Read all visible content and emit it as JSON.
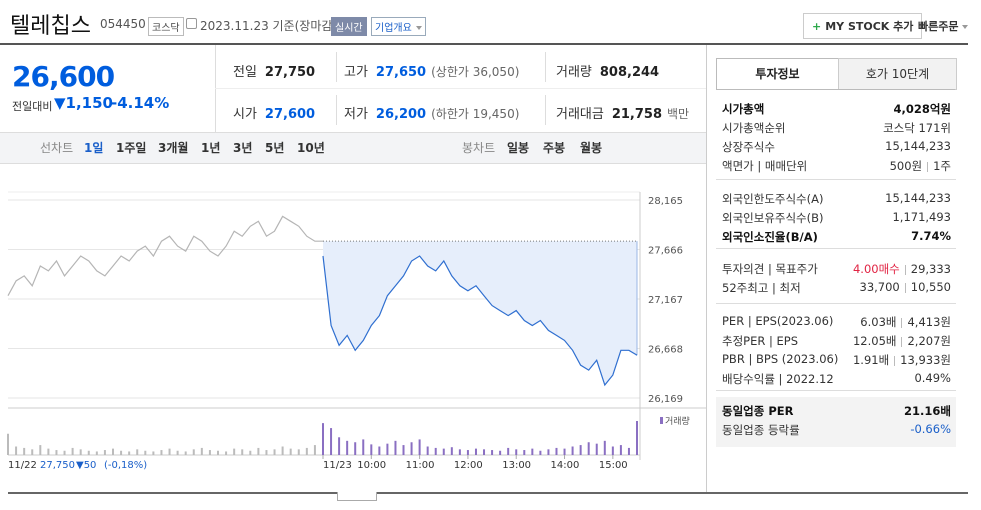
{
  "header": {
    "name": "텔레칩스",
    "code": "054450",
    "market": "코스닥",
    "date": "2023.11.23 기준(장마감)",
    "realtime": "실시간",
    "overview": "기업개요",
    "mystock": "MY STOCK 추가",
    "quick_order": "빠른주문"
  },
  "quote": {
    "price": "26,600",
    "change_label": "전일대비",
    "change": "▼1,150",
    "change_pct": "-4.14%",
    "cells": [
      {
        "label": "전일",
        "value": "27,750"
      },
      {
        "label": "고가",
        "value": "27,650",
        "extra": "(상한가 36,050)"
      },
      {
        "label": "거래량",
        "value": "808,244"
      },
      {
        "label": "시가",
        "value": "27,600"
      },
      {
        "label": "저가",
        "value": "26,200",
        "extra": "(하한가 19,450)"
      },
      {
        "label": "거래대금",
        "value": "21,758",
        "extra": "백만"
      }
    ]
  },
  "tabs": {
    "line_label": "선차트",
    "periods": [
      "1일",
      "1주일",
      "3개월",
      "1년",
      "3년",
      "5년",
      "10년"
    ],
    "candle_label": "봉차트",
    "candles": [
      "일봉",
      "주봉",
      "월봉"
    ]
  },
  "chart_data": {
    "type": "line",
    "ylim": [
      26169,
      28165
    ],
    "yticks": [
      {
        "value": 28165,
        "label": "28,165"
      },
      {
        "value": 27666,
        "label": "27,666"
      },
      {
        "value": 27167,
        "label": "27,167"
      },
      {
        "value": 26668,
        "label": "26,668"
      },
      {
        "value": 26169,
        "label": "26,169"
      }
    ],
    "reference": 27750,
    "x_labels": [
      "11/23",
      "10:00",
      "11:00",
      "12:00",
      "13:00",
      "14:00",
      "15:00"
    ],
    "prev_info": {
      "date": "11/22",
      "close": "27,750",
      "change": "▼50",
      "pct": "(-0,18%)"
    },
    "volume_label": "거래량",
    "series": [
      {
        "name": "11/22",
        "color": "#b5b5b5",
        "values": [
          27200,
          27350,
          27400,
          27300,
          27500,
          27450,
          27550,
          27400,
          27500,
          27600,
          27550,
          27450,
          27400,
          27500,
          27600,
          27550,
          27650,
          27700,
          27600,
          27750,
          27800,
          27700,
          27650,
          27800,
          27750,
          27650,
          27600,
          27700,
          27850,
          27800,
          27900,
          27950,
          27800,
          27850,
          28000,
          27950,
          27900,
          27800,
          27750,
          27750
        ],
        "volume": [
          30,
          12,
          10,
          8,
          14,
          9,
          7,
          6,
          10,
          8,
          6,
          5,
          7,
          9,
          6,
          5,
          8,
          6,
          5,
          7,
          9,
          6,
          5,
          8,
          10,
          7,
          6,
          5,
          9,
          8,
          6,
          10,
          7,
          8,
          12,
          9,
          8,
          10,
          14,
          25
        ]
      },
      {
        "name": "11/23",
        "color": "#2f6fd0",
        "values": [
          27600,
          26900,
          26700,
          26800,
          26650,
          26750,
          26900,
          27000,
          27200,
          27300,
          27400,
          27550,
          27600,
          27500,
          27450,
          27550,
          27400,
          27300,
          27250,
          27300,
          27200,
          27100,
          27050,
          27000,
          27050,
          26950,
          26900,
          26950,
          26850,
          26800,
          26750,
          26650,
          26500,
          26450,
          26550,
          26300,
          26400,
          26650,
          26650,
          26600
        ],
        "volume": [
          45,
          38,
          25,
          20,
          18,
          22,
          15,
          12,
          16,
          20,
          14,
          18,
          22,
          12,
          10,
          9,
          11,
          8,
          7,
          9,
          8,
          7,
          6,
          10,
          8,
          7,
          9,
          6,
          8,
          10,
          9,
          12,
          14,
          18,
          16,
          20,
          12,
          14,
          10,
          48
        ]
      }
    ]
  },
  "invest": {
    "tabs": [
      "투자정보",
      "호가 10단계"
    ],
    "groups": [
      [
        {
          "label": "시가총액",
          "parts": [
            "4,028억원"
          ],
          "bold": true
        },
        {
          "label": "시가총액순위",
          "parts": [
            "코스닥 171위"
          ]
        },
        {
          "label": "상장주식수",
          "parts": [
            "15,144,233"
          ]
        },
        {
          "label": "액면가 | 매매단위",
          "parts": [
            "500원",
            "1주"
          ]
        }
      ],
      [
        {
          "label": "외국인한도주식수(A)",
          "parts": [
            "15,144,233"
          ]
        },
        {
          "label": "외국인보유주식수(B)",
          "parts": [
            "1,171,493"
          ]
        },
        {
          "label": "외국인소진율(B/A)",
          "parts": [
            "7.74%"
          ],
          "bold": true
        }
      ],
      [
        {
          "label": "투자의견 | 목표주가",
          "parts": [
            {
              "text": "4.00매수",
              "color": "#e12343"
            },
            "29,333"
          ]
        },
        {
          "label": "52주최고 | 최저",
          "parts": [
            "33,700",
            "10,550"
          ]
        }
      ],
      [
        {
          "label": "PER | EPS(2023.06)",
          "parts": [
            "6.03배",
            "4,413원"
          ]
        },
        {
          "label": "추정PER | EPS",
          "parts": [
            "12.05배",
            "2,207원"
          ]
        },
        {
          "label": "PBR | BPS (2023.06)",
          "parts": [
            "1.91배",
            "13,933원"
          ]
        },
        {
          "label": "배당수익률 | 2022.12",
          "parts": [
            "0.49%"
          ]
        }
      ],
      [
        {
          "label": "동일업종 PER",
          "parts": [
            "21.16배"
          ],
          "bold": true
        },
        {
          "label": "동일업종 등락률",
          "parts": [
            {
              "text": "-0.66%",
              "color": "#1a5fc9"
            }
          ]
        }
      ]
    ]
  }
}
